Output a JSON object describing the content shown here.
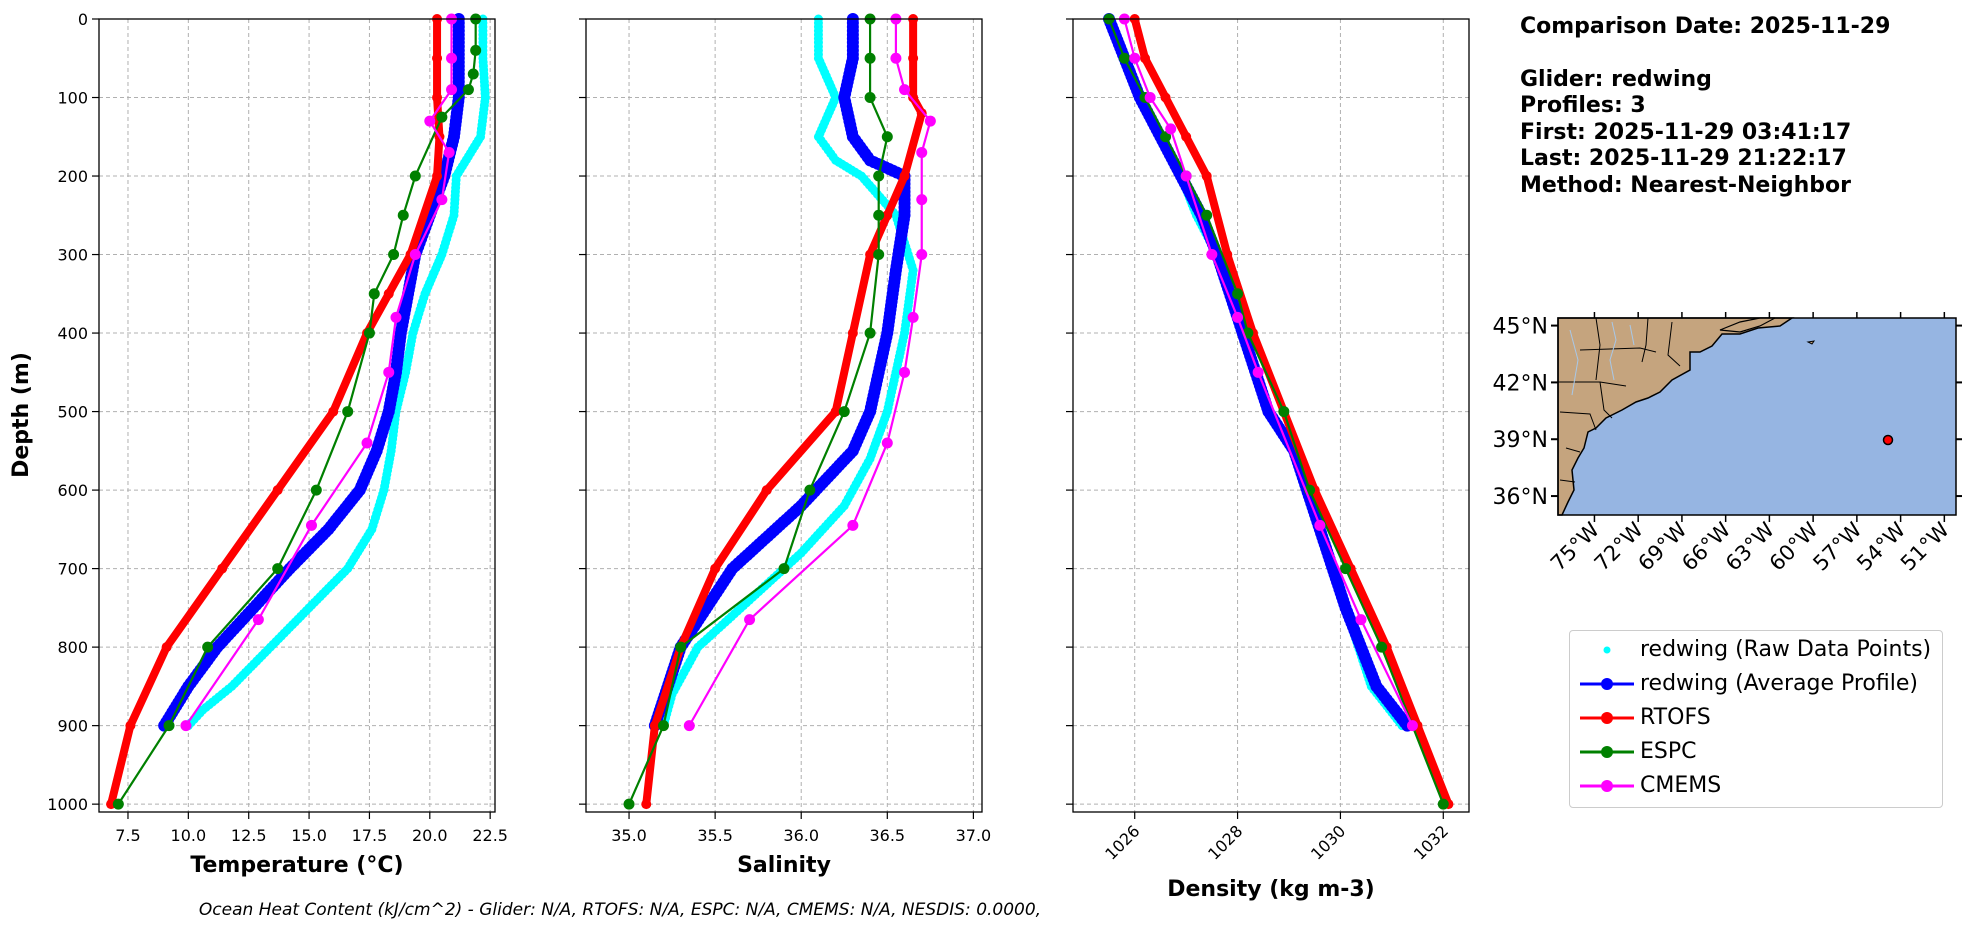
{
  "info": {
    "line1": "Comparison Date: 2025-11-29",
    "line2": "Glider: redwing",
    "line3": "Profiles: 3",
    "line4": "First: 2025-11-29 03:41:17",
    "line5": "Last: 2025-11-29 21:22:17",
    "line6": "Method: Nearest-Neighbor"
  },
  "footer": "Ocean Heat Content (kJ/cm^2) - Glider: N/A,  RTOFS: N/A,  ESPC: N/A,  CMEMS: N/A,  NESDIS: 0.0000,",
  "legend": [
    {
      "label": "redwing (Raw Data Points)",
      "color": "#00ffff",
      "style": "dots"
    },
    {
      "label": "redwing (Average Profile)",
      "color": "#0000ff",
      "style": "line-marker"
    },
    {
      "label": "RTOFS",
      "color": "#ff0000",
      "style": "line-marker"
    },
    {
      "label": "ESPC",
      "color": "#008000",
      "style": "line-marker"
    },
    {
      "label": "CMEMS",
      "color": "#ff00ff",
      "style": "line-marker"
    }
  ],
  "chart_data": [
    {
      "type": "line",
      "ylabel": "Depth (m)",
      "xlabel": "Temperature (°C)",
      "xlim": [
        6.3,
        22.7
      ],
      "ylim": [
        1010,
        0
      ],
      "xticks": [
        "7.5",
        "10.0",
        "12.5",
        "15.0",
        "17.5",
        "20.0",
        "22.5"
      ],
      "yticks": [
        "0",
        "100",
        "200",
        "300",
        "400",
        "500",
        "600",
        "700",
        "800",
        "900",
        "1000"
      ],
      "grid": true,
      "series": [
        {
          "name": "redwing (Raw Data Points)",
          "color": "#00ffff",
          "x": [
            22.2,
            22.2,
            22.3,
            22.1,
            21.1,
            21.0,
            20.5,
            19.8,
            19.3,
            19.0,
            18.6,
            18.4,
            18.1,
            17.6,
            16.6,
            15.0,
            13.4,
            11.8,
            10.6,
            10.0
          ],
          "y": [
            0,
            50,
            100,
            150,
            200,
            250,
            300,
            350,
            400,
            450,
            500,
            550,
            600,
            650,
            700,
            750,
            800,
            850,
            880,
            900
          ]
        },
        {
          "name": "redwing (Average Profile)",
          "color": "#0000ff",
          "x": [
            21.2,
            21.2,
            21.2,
            21.0,
            20.6,
            20.0,
            19.4,
            19.1,
            18.8,
            18.6,
            18.3,
            17.8,
            17.1,
            15.8,
            14.2,
            12.7,
            11.2,
            10.0,
            9.0
          ],
          "y": [
            0,
            50,
            100,
            150,
            200,
            250,
            300,
            350,
            400,
            450,
            500,
            550,
            600,
            650,
            700,
            750,
            800,
            850,
            900
          ]
        },
        {
          "name": "RTOFS",
          "color": "#ff0000",
          "x": [
            20.3,
            20.3,
            20.3,
            20.4,
            20.3,
            19.2,
            18.3,
            17.4,
            16.0,
            13.7,
            11.4,
            9.1,
            7.6,
            6.8
          ],
          "y": [
            0,
            50,
            100,
            150,
            200,
            300,
            350,
            400,
            500,
            600,
            700,
            800,
            900,
            1000
          ]
        },
        {
          "name": "ESPC",
          "color": "#008000",
          "x": [
            21.9,
            21.9,
            21.8,
            21.6,
            20.5,
            19.4,
            18.9,
            18.5,
            17.7,
            17.5,
            16.6,
            15.3,
            13.7,
            10.8,
            9.2,
            7.1
          ],
          "y": [
            0,
            40,
            70,
            90,
            125,
            200,
            250,
            300,
            350,
            400,
            500,
            600,
            700,
            800,
            900,
            1000
          ]
        },
        {
          "name": "CMEMS",
          "color": "#ff00ff",
          "x": [
            20.9,
            20.9,
            20.9,
            20.0,
            20.8,
            20.5,
            19.4,
            18.6,
            18.3,
            17.4,
            15.1,
            12.9,
            9.9
          ],
          "y": [
            0,
            50,
            90,
            130,
            170,
            230,
            300,
            380,
            450,
            540,
            645,
            765,
            900
          ]
        }
      ]
    },
    {
      "type": "line",
      "xlabel": "Salinity",
      "xlim": [
        34.75,
        37.05
      ],
      "ylim": [
        1010,
        0
      ],
      "xticks": [
        "35.0",
        "35.5",
        "36.0",
        "36.5",
        "37.0"
      ],
      "grid": true,
      "series": [
        {
          "name": "redwing (Raw Data Points)",
          "color": "#00ffff",
          "x": [
            36.1,
            36.1,
            36.2,
            36.1,
            36.2,
            36.35,
            36.55,
            36.65,
            36.6,
            36.55,
            36.5,
            36.4,
            36.25,
            36.0,
            35.7,
            35.4,
            35.25,
            35.2
          ],
          "y": [
            0,
            50,
            100,
            150,
            180,
            200,
            250,
            320,
            400,
            450,
            500,
            560,
            620,
            680,
            740,
            800,
            860,
            900
          ]
        },
        {
          "name": "redwing (Average Profile)",
          "color": "#0000ff",
          "x": [
            36.3,
            36.3,
            36.25,
            36.3,
            36.4,
            36.6,
            36.6,
            36.55,
            36.5,
            36.45,
            36.4,
            36.3,
            36.0,
            35.6,
            35.3,
            35.15
          ],
          "y": [
            0,
            50,
            100,
            150,
            180,
            200,
            250,
            320,
            400,
            450,
            500,
            550,
            620,
            700,
            800,
            900
          ]
        },
        {
          "name": "RTOFS",
          "color": "#ff0000",
          "x": [
            36.65,
            36.65,
            36.65,
            36.7,
            36.6,
            36.5,
            36.4,
            36.3,
            36.2,
            35.8,
            35.5,
            35.3,
            35.15,
            35.1
          ],
          "y": [
            0,
            50,
            100,
            120,
            200,
            250,
            300,
            400,
            500,
            600,
            700,
            800,
            900,
            1000
          ]
        },
        {
          "name": "ESPC",
          "color": "#008000",
          "x": [
            36.4,
            36.4,
            36.4,
            36.5,
            36.45,
            36.45,
            36.45,
            36.4,
            36.25,
            36.05,
            35.9,
            35.3,
            35.2,
            35.0
          ],
          "y": [
            0,
            50,
            100,
            150,
            200,
            250,
            300,
            400,
            500,
            600,
            700,
            800,
            900,
            1000
          ]
        },
        {
          "name": "CMEMS",
          "color": "#ff00ff",
          "x": [
            36.55,
            36.55,
            36.6,
            36.75,
            36.7,
            36.7,
            36.7,
            36.65,
            36.6,
            36.5,
            36.3,
            35.7,
            35.35
          ],
          "y": [
            0,
            50,
            90,
            130,
            170,
            230,
            300,
            380,
            450,
            540,
            645,
            765,
            900
          ]
        }
      ]
    },
    {
      "type": "line",
      "xlabel": "Density (kg m-3)",
      "xlim": [
        1024.8,
        1032.5
      ],
      "ylim": [
        1010,
        0
      ],
      "xticks": [
        "1026",
        "1028",
        "1030",
        "1032"
      ],
      "grid": true,
      "series": [
        {
          "name": "redwing (Raw Data Points)",
          "color": "#00ffff",
          "x": [
            1025.5,
            1025.8,
            1026.1,
            1026.5,
            1026.9,
            1027.2,
            1027.6,
            1028.1,
            1028.6,
            1029.1,
            1029.6,
            1030.1,
            1030.6,
            1031.2
          ],
          "y": [
            0,
            50,
            100,
            150,
            200,
            250,
            300,
            400,
            500,
            550,
            650,
            750,
            850,
            900
          ]
        },
        {
          "name": "redwing (Average Profile)",
          "color": "#0000ff",
          "x": [
            1025.5,
            1025.8,
            1026.1,
            1026.5,
            1026.9,
            1027.3,
            1027.6,
            1028.1,
            1028.6,
            1029.1,
            1029.6,
            1030.1,
            1030.7,
            1031.3
          ],
          "y": [
            0,
            50,
            100,
            150,
            200,
            250,
            300,
            400,
            500,
            550,
            650,
            750,
            850,
            900
          ]
        },
        {
          "name": "RTOFS",
          "color": "#ff0000",
          "x": [
            1026.0,
            1026.2,
            1026.6,
            1027.0,
            1027.4,
            1027.8,
            1028.3,
            1028.9,
            1029.5,
            1030.2,
            1030.9,
            1031.5,
            1032.1
          ],
          "y": [
            0,
            50,
            100,
            150,
            200,
            300,
            400,
            500,
            600,
            700,
            800,
            900,
            1000
          ]
        },
        {
          "name": "ESPC",
          "color": "#008000",
          "x": [
            1025.5,
            1025.8,
            1026.2,
            1026.6,
            1027.0,
            1027.4,
            1028.0,
            1028.2,
            1028.9,
            1029.4,
            1030.1,
            1030.8,
            1032.0
          ],
          "y": [
            0,
            50,
            100,
            150,
            200,
            250,
            350,
            400,
            500,
            600,
            700,
            800,
            1000
          ]
        },
        {
          "name": "CMEMS",
          "color": "#ff00ff",
          "x": [
            1025.8,
            1026.0,
            1026.3,
            1026.7,
            1027.0,
            1027.5,
            1028.0,
            1028.4,
            1029.6,
            1030.4,
            1031.4
          ],
          "y": [
            0,
            50,
            100,
            140,
            200,
            300,
            380,
            450,
            645,
            765,
            900
          ]
        }
      ]
    },
    {
      "type": "scatter",
      "xticks": [
        "75°W",
        "72°W",
        "69°W",
        "66°W",
        "63°W",
        "60°W",
        "57°W",
        "54°W",
        "51°W"
      ],
      "yticks": [
        "45°N",
        "42°N",
        "39°N",
        "36°N"
      ],
      "xlim": [
        -77.5,
        -50.2
      ],
      "ylim": [
        35.0,
        45.4
      ],
      "ocean_color": "#96b5e2",
      "land_color": "#c5a47e",
      "points": [
        {
          "lon": -53.9,
          "lat": 39.0,
          "color": "#ff0000"
        }
      ]
    }
  ]
}
